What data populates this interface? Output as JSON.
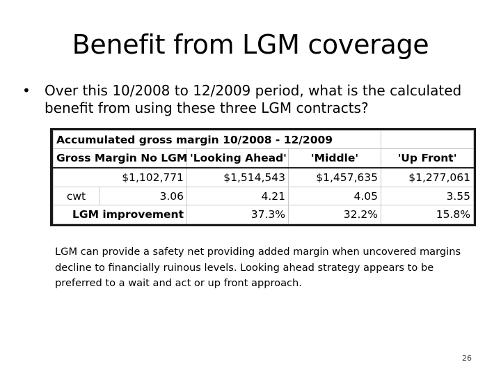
{
  "slide": {
    "title": "Benefit from LGM coverage",
    "bullet_symbol": "•",
    "bullet": "Over this 10/2008 to 12/2009 period, what is the calculated benefit from using these three LGM contracts?",
    "note": "LGM can provide a safety net providing added margin when uncovered margins decline to financially ruinous levels.  Looking ahead strategy appears to be preferred to a wait and act or up front approach.",
    "page_number": "26"
  },
  "table": {
    "title": "Accumulated gross margin 10/2008 - 12/2009",
    "headers": [
      "Gross Margin No LGM",
      "'Looking Ahead'",
      "'Middle'",
      "'Up Front'"
    ],
    "margin_values": [
      "$1,102,771",
      "$1,514,543",
      "$1,457,635",
      "$1,277,061"
    ],
    "cwt_label": "cwt",
    "cwt_values": [
      "3.06",
      "4.21",
      "4.05",
      "3.55"
    ],
    "improvement_label": "LGM improvement",
    "improvement_values": [
      "37.3%",
      "32.2%",
      "15.8%"
    ]
  }
}
